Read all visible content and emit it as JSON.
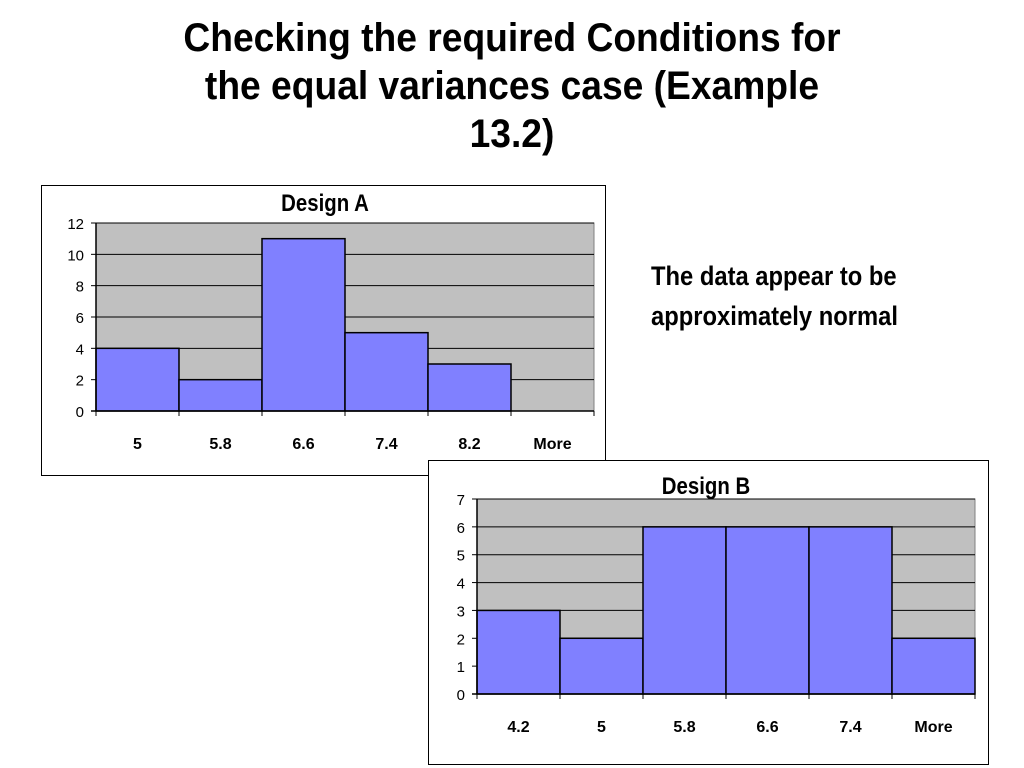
{
  "slide": {
    "title_lines": [
      "Checking the required Conditions for",
      "the equal variances case (Example",
      "13.2)"
    ],
    "note_lines": [
      "The data appear to be",
      "approximately normal"
    ]
  },
  "colors": {
    "bar": "#8080ff",
    "plot_bg": "#c0c0c0",
    "grid": "#000000"
  },
  "chart_data": [
    {
      "type": "bar",
      "title": "Design A",
      "categories": [
        "5",
        "5.8",
        "6.6",
        "7.4",
        "8.2",
        "More"
      ],
      "values": [
        4,
        2,
        11,
        5,
        3,
        0
      ],
      "yticks": [
        0,
        2,
        4,
        6,
        8,
        10,
        12
      ],
      "ylim": [
        0,
        12
      ],
      "xlabel": "",
      "ylabel": "",
      "grid": true,
      "legend": "none"
    },
    {
      "type": "bar",
      "title": "Design B",
      "categories": [
        "4.2",
        "5",
        "5.8",
        "6.6",
        "7.4",
        "More"
      ],
      "values": [
        3,
        2,
        6,
        6,
        6,
        2
      ],
      "yticks": [
        0,
        1,
        2,
        3,
        4,
        5,
        6,
        7
      ],
      "ylim": [
        0,
        7
      ],
      "xlabel": "",
      "ylabel": "",
      "grid": true,
      "legend": "none"
    }
  ]
}
